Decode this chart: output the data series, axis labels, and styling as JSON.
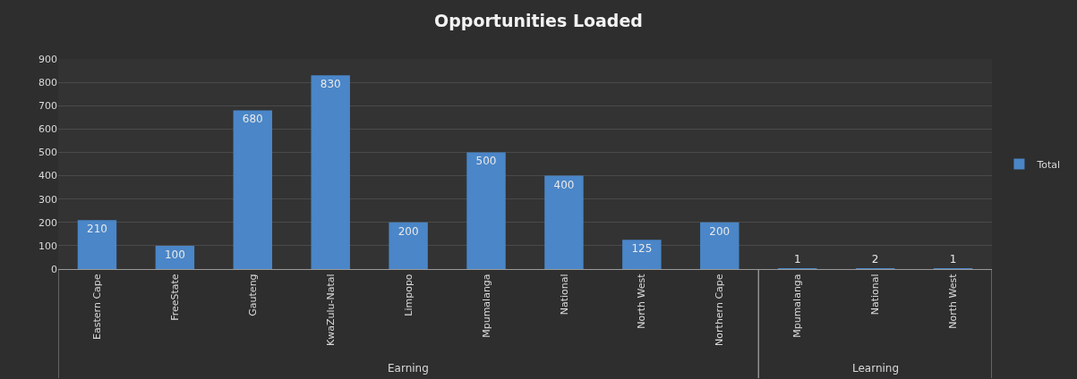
{
  "chart_data": {
    "type": "bar",
    "title": "Opportunities Loaded",
    "categories": [
      "Eastern Cape",
      "FreeState",
      "Gauteng",
      "KwaZulu-Natal",
      "Limpopo",
      "Mpumalanga",
      "National",
      "North West",
      "Northern Cape",
      "Mpumalanga",
      "National",
      "North West"
    ],
    "series": [
      {
        "name": "Total",
        "color": "#4a86c8",
        "values": [
          210,
          100,
          680,
          830,
          200,
          500,
          400,
          125,
          200,
          1,
          2,
          1
        ]
      }
    ],
    "annotations": [
      "Earning",
      "Learning"
    ],
    "ylim": [
      0,
      900
    ],
    "yticks": [
      0,
      100,
      200,
      300,
      400,
      500,
      600,
      700,
      800,
      900
    ],
    "grid": "y",
    "legend": "right",
    "data_labels": true
  }
}
